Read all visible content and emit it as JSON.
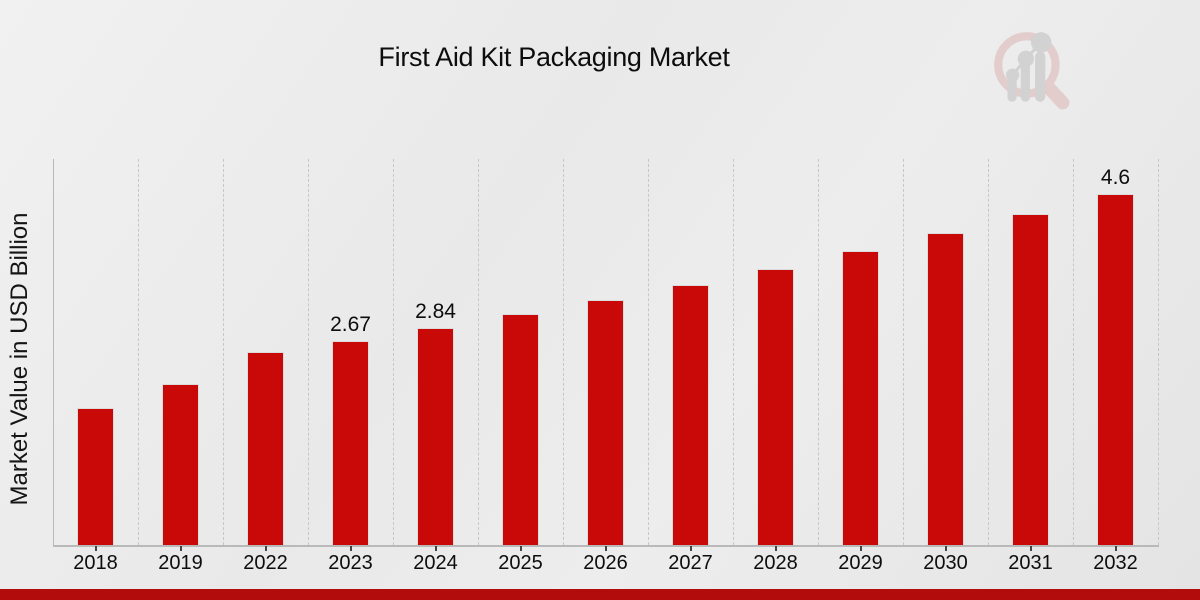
{
  "y_axis": {
    "label": "Market Value in USD Billion"
  },
  "watermark": {
    "name": "market-research-magnifier-logo"
  },
  "colors": {
    "bar": "#c90808",
    "bar_outline": "#dcdcdc",
    "accent_strip": "#b20c0c",
    "gridline": "#c7c7c7",
    "axis_line": "#b9b9b9",
    "tick": "#444444",
    "text": "#111111",
    "watermark_gray": "#bdbdbd",
    "watermark_pink": "#dcb3b3"
  },
  "chart_data": {
    "type": "bar",
    "title": "First Aid Kit Packaging Market",
    "xlabel": "",
    "ylabel": "Market Value in USD Billion",
    "unit": "USD Billion",
    "categories": [
      "2018",
      "2019",
      "2022",
      "2023",
      "2024",
      "2025",
      "2026",
      "2027",
      "2028",
      "2029",
      "2030",
      "2031",
      "2032"
    ],
    "values": [
      1.79,
      2.1,
      2.52,
      2.67,
      2.84,
      3.02,
      3.21,
      3.4,
      3.61,
      3.85,
      4.09,
      4.34,
      4.6
    ],
    "bar_value_labels": [
      "",
      "",
      "",
      "2.67",
      "2.84",
      "",
      "",
      "",
      "",
      "",
      "",
      "",
      "4.6"
    ],
    "ylim": [
      0,
      5.07
    ],
    "grid": "vertical-dashed-column-separators",
    "legend": "none",
    "bar_color": "#c90808"
  }
}
